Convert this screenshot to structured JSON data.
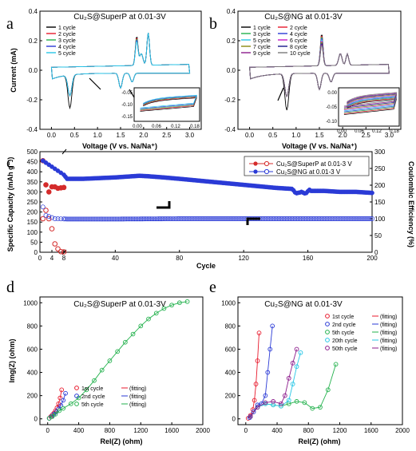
{
  "figure": {
    "panels": {
      "a": {
        "letter": "a",
        "title": "Cu₂S@SuperP at 0.01-3V",
        "xlabel": "Voltage (V vs. Na/Na⁺)",
        "ylabel": "Current (mA)",
        "inset_ticks_x": [
          "0.00",
          "0.06",
          "0.12",
          "0.18"
        ],
        "inset_ticks_y": [
          "-0.05",
          "-0.10",
          "-0.15"
        ]
      },
      "b": {
        "letter": "b",
        "title": "Cu₂S@NG at 0.01-3V",
        "xlabel": "Voltage (V vs. Na/Na⁺)",
        "ylabel": "",
        "inset_ticks_x": [
          "0.00",
          "0.06",
          "0.12",
          "0.18"
        ],
        "inset_ticks_y": [
          "0.00",
          "-0.05",
          "-0.10"
        ]
      },
      "c": {
        "letter": "c",
        "title": "",
        "xlabel": "Cycle",
        "ylabel": "Specific Capacity (mAh g⁻¹)",
        "y2label": "Coulombic Efficiency (%)"
      },
      "d": {
        "letter": "d",
        "title": "Cu₂S@SuperP at 0.01-3V",
        "xlabel": "Rel(Z) (ohm)",
        "ylabel": "Img(Z) (ohm)"
      },
      "e": {
        "letter": "e",
        "title": "Cu₂S@NG at 0.01-3V",
        "xlabel": "Rel(Z) (ohm)",
        "ylabel": ""
      }
    }
  },
  "chart_data": [
    {
      "id": "a",
      "type": "line",
      "title": "Cu₂S@SuperP at 0.01-3V",
      "xlabel": "Voltage (V vs. Na/Na⁺)",
      "ylabel": "Current (mA)",
      "xlim": [
        -0.25,
        3.25
      ],
      "ylim": [
        -0.4,
        0.4
      ],
      "xticks": [
        0.0,
        0.5,
        1.0,
        1.5,
        2.0,
        2.5,
        3.0
      ],
      "yticks": [
        -0.4,
        -0.2,
        0.0,
        0.2,
        0.4
      ],
      "legend_position": "top-left",
      "series": [
        {
          "name": "1 cycle",
          "color": "#000000"
        },
        {
          "name": "2 cycle",
          "color": "#e8192c"
        },
        {
          "name": "3 cycle",
          "color": "#22b14c"
        },
        {
          "name": "4 cycle",
          "color": "#2a3ad6"
        },
        {
          "name": "5 cycle",
          "color": "#27c6e6"
        }
      ]
    },
    {
      "id": "b",
      "type": "line",
      "title": "Cu₂S@NG at 0.01-3V",
      "xlabel": "Voltage (V vs. Na/Na⁺)",
      "xlim": [
        -0.25,
        3.25
      ],
      "ylim": [
        -0.4,
        0.4
      ],
      "xticks": [
        0.0,
        0.5,
        1.0,
        1.5,
        2.0,
        2.5,
        3.0
      ],
      "yticks": [
        -0.4,
        -0.2,
        0.0,
        0.2,
        0.4
      ],
      "legend_position": "top-left",
      "series": [
        {
          "name": "1 cycle",
          "color": "#000000"
        },
        {
          "name": "2 cycle",
          "color": "#e8192c"
        },
        {
          "name": "3 cycle",
          "color": "#22b14c"
        },
        {
          "name": "4 cycle",
          "color": "#2a3ad6"
        },
        {
          "name": "5 cycle",
          "color": "#27c6e6"
        },
        {
          "name": "6 cycle",
          "color": "#c61ac6"
        },
        {
          "name": "7 cycle",
          "color": "#8a8a10"
        },
        {
          "name": "8 cycle",
          "color": "#1a1a8c"
        },
        {
          "name": "9 cycle",
          "color": "#8b1a8b"
        },
        {
          "name": "10 cycle",
          "color": "#7a7a7a"
        }
      ]
    },
    {
      "id": "c",
      "type": "scatter",
      "xlabel": "Cycle",
      "ylabel": "Specific Capacity (mAh g⁻¹)",
      "y2label": "Coulombic Efficiency (%)",
      "xlim": [
        0,
        200
      ],
      "ylim": [
        0,
        500
      ],
      "y2lim": [
        0,
        300
      ],
      "xticks": [
        0,
        4,
        8,
        40,
        80,
        120,
        160,
        200
      ],
      "yticks": [
        0,
        50,
        100,
        150,
        200,
        250,
        300,
        350,
        400,
        450,
        500
      ],
      "y2ticks": [
        0,
        50,
        100,
        150,
        200,
        250,
        300
      ],
      "legend_position": "top-right",
      "series": [
        {
          "name": "Cu₂S@SuperP at 0.01-3 V",
          "color": "#d42b2b",
          "capacity_x": [
            1,
            2,
            3,
            4,
            5,
            6,
            7,
            8
          ],
          "capacity_y": [
            455,
            335,
            300,
            325,
            325,
            318,
            320,
            322
          ],
          "efficiency_x": [
            1,
            2,
            3,
            4,
            5,
            6,
            7,
            8
          ],
          "efficiency_y": [
            100,
            125,
            100,
            70,
            25,
            10,
            2,
            1
          ]
        },
        {
          "name": "Cu₂S@NG at 0.01-3 V",
          "color": "#2a3ad6",
          "capacity_x": [
            1,
            10,
            20,
            40,
            55,
            60,
            70,
            80,
            100,
            120,
            140,
            150,
            155,
            160,
            170,
            180,
            190,
            200
          ],
          "capacity_y": [
            455,
            365,
            365,
            372,
            380,
            378,
            372,
            365,
            350,
            335,
            320,
            315,
            290,
            305,
            305,
            300,
            300,
            295
          ],
          "efficiency_x": [
            1,
            2,
            5,
            10,
            40,
            80,
            120,
            160,
            200
          ],
          "efficiency_y": [
            135,
            110,
            100,
            99,
            99,
            100,
            100,
            100,
            100
          ]
        }
      ]
    },
    {
      "id": "d",
      "type": "scatter",
      "title": "Cu₂S@SuperP at 0.01-3V",
      "xlabel": "Rel(Z) (ohm)",
      "ylabel": "Img(Z) (ohm)",
      "xlim": [
        -100,
        2000
      ],
      "ylim": [
        -50,
        1050
      ],
      "xticks": [
        0,
        400,
        800,
        1200,
        1600,
        2000
      ],
      "yticks": [
        0,
        200,
        400,
        600,
        800,
        1000
      ],
      "legend_position": "bottom-center",
      "series": [
        {
          "name": "1st cycle",
          "fit_label": "fitting",
          "color": "#e8192c",
          "x": [
            20,
            40,
            60,
            80,
            100,
            120,
            140,
            160,
            180
          ],
          "y": [
            5,
            20,
            35,
            50,
            70,
            95,
            130,
            180,
            250
          ]
        },
        {
          "name": "2nd cycle",
          "fit_label": "fitting",
          "color": "#2a3ad6",
          "x": [
            20,
            50,
            80,
            110,
            140,
            170,
            200,
            230
          ],
          "y": [
            5,
            20,
            40,
            60,
            85,
            115,
            160,
            220
          ]
        },
        {
          "name": "5th cycle",
          "fit_label": "fitting",
          "color": "#22b14c",
          "x": [
            20,
            60,
            100,
            150,
            200,
            300,
            400,
            500,
            600,
            700,
            800,
            900,
            1000,
            1100,
            1200,
            1300,
            1400,
            1500,
            1600,
            1700,
            1800
          ],
          "y": [
            5,
            20,
            40,
            70,
            90,
            130,
            180,
            250,
            330,
            420,
            500,
            580,
            660,
            730,
            800,
            860,
            910,
            950,
            980,
            1000,
            1010
          ]
        }
      ]
    },
    {
      "id": "e",
      "type": "scatter",
      "title": "Cu₂S@NG at 0.01-3V",
      "xlabel": "Rel(Z) (ohm)",
      "xlim": [
        -100,
        2000
      ],
      "ylim": [
        -50,
        1050
      ],
      "xticks": [
        0,
        400,
        800,
        1200,
        1600,
        2000
      ],
      "yticks": [
        0,
        200,
        400,
        600,
        800,
        1000
      ],
      "legend_position": "right",
      "series": [
        {
          "name": "1st cycle",
          "fit_label": "fitting",
          "color": "#e8192c",
          "x": [
            30,
            60,
            90,
            110,
            130,
            150,
            170
          ],
          "y": [
            5,
            30,
            80,
            160,
            300,
            500,
            740
          ]
        },
        {
          "name": "2nd cycle",
          "fit_label": "fitting",
          "color": "#2a3ad6",
          "x": [
            50,
            100,
            150,
            200,
            250,
            280,
            310,
            340
          ],
          "y": [
            10,
            60,
            120,
            130,
            200,
            400,
            600,
            800
          ]
        },
        {
          "name": "5th cycle",
          "fit_label": "fitting",
          "color": "#22b14c",
          "x": [
            60,
            150,
            250,
            350,
            450,
            550,
            650,
            750,
            850,
            950,
            1050,
            1150
          ],
          "y": [
            20,
            100,
            130,
            120,
            110,
            130,
            150,
            140,
            90,
            100,
            250,
            470
          ]
        },
        {
          "name": "20th cycle",
          "fit_label": "fitting",
          "color": "#27c6e6",
          "x": [
            60,
            150,
            250,
            350,
            450,
            550,
            600,
            650,
            700
          ],
          "y": [
            20,
            100,
            130,
            120,
            110,
            160,
            300,
            450,
            570
          ]
        },
        {
          "name": "50th cycle",
          "fit_label": "fitting",
          "color": "#8b1a8b",
          "x": [
            60,
            150,
            250,
            350,
            450,
            500,
            550,
            600,
            650
          ],
          "y": [
            20,
            100,
            140,
            150,
            130,
            200,
            350,
            480,
            600
          ]
        }
      ]
    }
  ]
}
